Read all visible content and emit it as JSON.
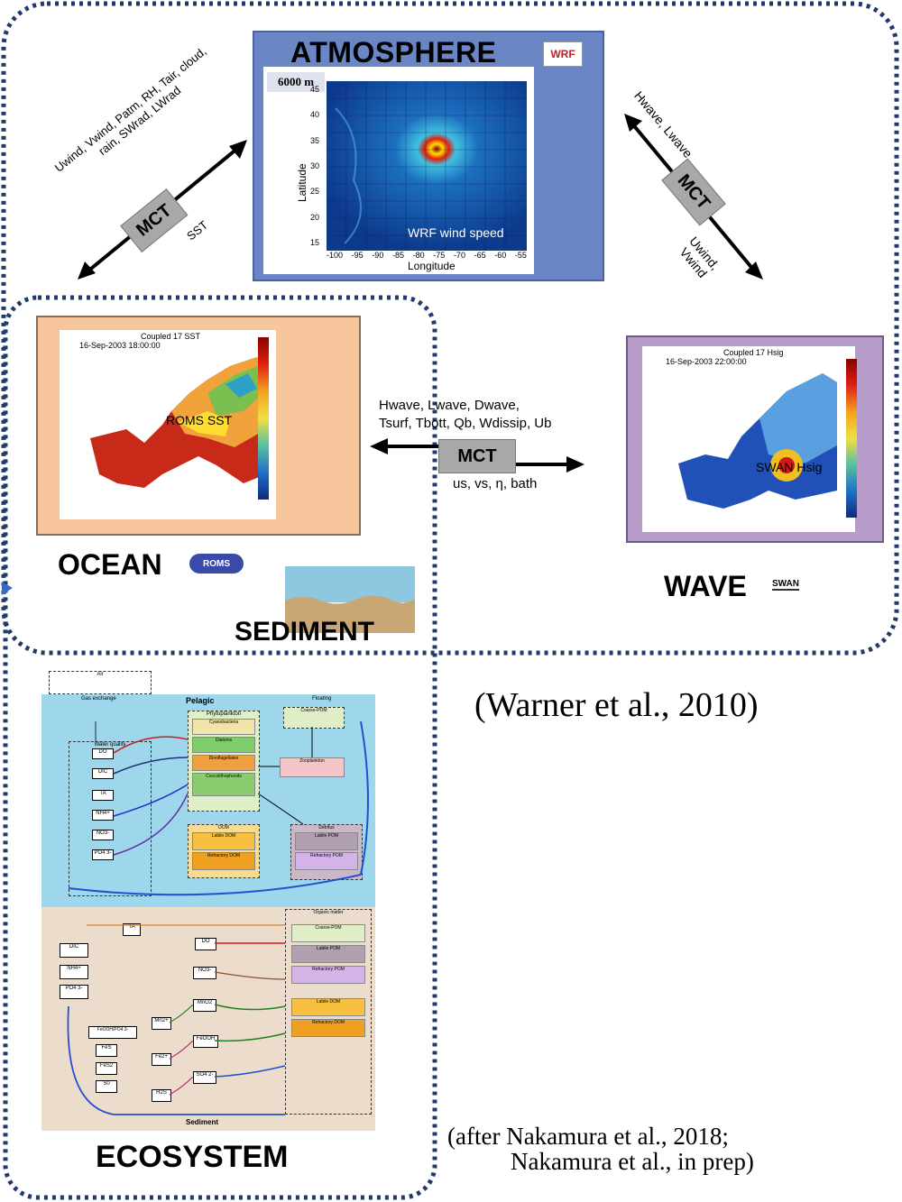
{
  "atmosphere": {
    "title": "ATMOSPHERE",
    "logo_text": "WRF",
    "height_label": "6000 m",
    "xlabel": "Longitude",
    "ylabel": "Latitude",
    "map_caption": "WRF wind speed",
    "xticks": [
      "-100",
      "-95",
      "-90",
      "-85",
      "-80",
      "-75",
      "-70",
      "-65",
      "-60",
      "-55"
    ],
    "yticks": [
      "45",
      "40",
      "35",
      "30",
      "25",
      "20",
      "15"
    ]
  },
  "ocean": {
    "label": "OCEAN",
    "logo_text": "ROMS",
    "map_caption": "ROMS SST",
    "plot_title": "Coupled 17 SST",
    "plot_date": "16-Sep-2003 18:00:00"
  },
  "wave": {
    "label": "WAVE",
    "logo_text": "SWAN",
    "map_caption": "SWAN Hsig",
    "plot_title": "Coupled 17 Hsig",
    "plot_date": "16-Sep-2003 22:00:00"
  },
  "sediment": {
    "label": "SEDIMENT"
  },
  "ecosystem": {
    "label": "ECOSYSTEM",
    "pelagic_label": "Pelagic",
    "sediment_label": "Sediment",
    "air_label": "Air",
    "gas_exchange": "Gas exchange",
    "floating": "Floating",
    "pelagic_boxes": {
      "water_quality": "Water quality",
      "phytoplankton": "Phytoplankton",
      "cyanobacteria": "Cyanobacteria",
      "diatoms": "Diatoms",
      "dinoflagellates": "Dinoflagellates",
      "coccolithophorids": "Coccolithophorids",
      "zooplankton": "Zooplankton",
      "dom": "DOM",
      "labile_dom": "Labile DOM",
      "refractory_dom": "Refractory DOM",
      "detritus": "Detritus",
      "labile_pom": "Labile POM",
      "refractory_pom": "Refractory POM",
      "coarse_pom": "Coarse-POM"
    },
    "process_labels": [
      "Photosynthesis",
      "Respiration/ Decomposition",
      "Grazing",
      "Mortality",
      "Excretion",
      "Calcification",
      "Dissolution",
      "Decomposition",
      "Nitrification",
      "Diffusion",
      "Oxidation",
      "Denitrification",
      "Mn reduction",
      "Fe reduction",
      "Sulfate reduction",
      "Aerobic respiration",
      "Secondary reactions"
    ],
    "pelagic_species": [
      "DO",
      "DIC",
      "TA",
      "NH4+",
      "NO3-",
      "PO4 3-",
      "CaCO3"
    ],
    "sediment_species": [
      "TA",
      "DO",
      "DIC",
      "NH4+",
      "PO4 3-",
      "NO3-",
      "MnO2",
      "Mn2+",
      "FeOOH",
      "Fe2+",
      "SO4 2-",
      "H2S",
      "FeOOH/PO4 3-",
      "FeS",
      "FeS2",
      "S0"
    ],
    "organic_matter": "Organic matter"
  },
  "couplers": {
    "mct_label": "MCT",
    "atm_to_ocean": "Uwind, Vwind, Patm, RH, Tair, cloud, rain, SWrad, LWrad",
    "ocean_to_atm": "SST",
    "wave_to_atm_top": "Hwave, Lwave",
    "atm_to_wave_bottom": "Uwind, Vwind",
    "wave_to_ocean": [
      "Hwave, Lwave, Dwave,",
      "Tsurf, Tbott, Qb, Wdissip, Ub"
    ],
    "ocean_to_wave": "us, vs, η, bath"
  },
  "citations": {
    "warner": "(Warner et al., 2010)",
    "nakamura_line1": "(after Nakamura et al., 2018;",
    "nakamura_line2": "Nakamura et al., in prep)"
  },
  "colors": {
    "atmosphere_panel": "#6a86c4",
    "ocean_panel": "#f7c59c",
    "wave_panel": "#b79bc8",
    "dotted_border": "#1f3a6b",
    "pelagic_bg": "#9ed6ec",
    "sediment_bg": "#ecdccb"
  }
}
